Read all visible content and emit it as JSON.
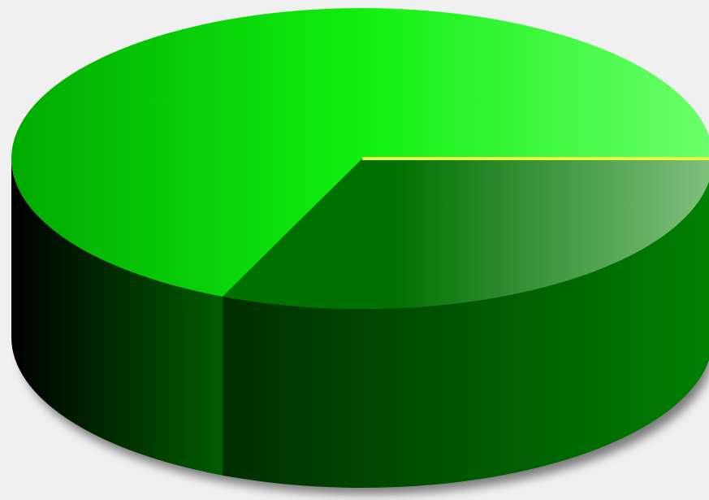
{
  "chart_data": {
    "type": "pie",
    "style": "3d",
    "title": "",
    "legend": "none",
    "slices": [
      {
        "value": 72,
        "color": "#00dd00"
      },
      {
        "value": 28,
        "color": "#007a00"
      }
    ]
  },
  "colors": {
    "background": "#f0f0f0",
    "top_light": "#6cff6c",
    "top_mid": "#10f010",
    "top_dark": "#00aa00",
    "side_dark": "#000000",
    "side_mid": "#005c00",
    "side_light": "#008000",
    "explode_top_dark": "#007000",
    "explode_top_light": "#80c080",
    "highlight": "#e8ff40",
    "shadow": "#555555"
  }
}
